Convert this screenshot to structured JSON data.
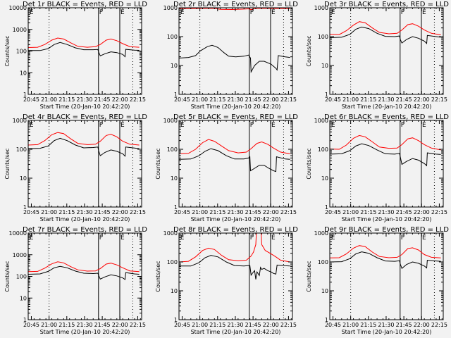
{
  "colors": {
    "background": "#f2f2f2",
    "events": "#000000",
    "lld": "#ff0000",
    "axes": "#000000"
  },
  "chart_data": {
    "type": "line",
    "layout": "3x3 grid",
    "x_ticks": [
      "20:45",
      "21:00",
      "21:15",
      "21:30",
      "21:45",
      "22:00",
      "22:15"
    ],
    "x_range_minutes_from_start": [
      0,
      96
    ],
    "x_tick_minutes": [
      2.67,
      17.67,
      32.67,
      47.67,
      62.67,
      77.67,
      92.67
    ],
    "xlabel": "Start Time (20-Jan-10 20:42:20)",
    "ylabel": "Counts/sec",
    "yscale": "log",
    "legend": "BLACK = Events, RED = LLD",
    "markers": {
      "dotted_lines_minutes": [
        17.67,
        88.5
      ],
      "solid_lines_minutes": [
        59.5,
        77.5
      ],
      "labels": [
        {
          "text": "E",
          "minute": 0.5
        },
        {
          "text": "F",
          "minute": 59.5
        },
        {
          "text": "E",
          "minute": 77.5
        }
      ]
    },
    "panels": [
      {
        "title": "Det 1r BLACK = Events, RED = LLD",
        "ylim": [
          1,
          10000
        ],
        "y_ticks": [
          "1",
          "10",
          "100",
          "1000",
          "10000"
        ],
        "show_ylabel": true,
        "series": [
          {
            "name": "Events",
            "color": "#000000",
            "x": [
              0,
              10,
              17,
              22,
              27,
              33,
              40,
              47,
              55,
              59,
              59.6,
              61,
              65,
              70,
              75,
              80,
              82,
              82.5,
              90,
              94
            ],
            "y": [
              105,
              105,
              130,
              200,
              250,
              200,
              140,
              115,
              115,
              118,
              90,
              60,
              75,
              92,
              85,
              70,
              55,
              120,
              110,
              108
            ]
          },
          {
            "name": "LLD",
            "color": "#ff0000",
            "x": [
              0,
              8,
              14,
              20,
              25,
              30,
              36,
              42,
              50,
              57,
              61,
              66,
              70,
              75,
              80,
              86,
              94
            ],
            "y": [
              145,
              150,
              200,
              320,
              400,
              360,
              240,
              165,
              150,
              160,
              200,
              320,
              360,
              300,
              220,
              160,
              150
            ]
          }
        ]
      },
      {
        "title": "Det 2r BLACK = Events, RED = LLD",
        "ylim": [
          1,
          1000
        ],
        "y_ticks": [
          "1",
          "10",
          "100",
          "1000"
        ],
        "show_ylabel": false,
        "series": [
          {
            "name": "Events",
            "color": "#000000",
            "x": [
              0,
              8,
              14,
              18,
              24,
              28,
              33,
              38,
              42,
              48,
              55,
              59,
              60.5,
              61,
              64,
              68,
              72,
              76,
              78,
              82,
              83,
              84,
              90,
              94
            ],
            "y": [
              18,
              19,
              22,
              32,
              45,
              50,
              42,
              28,
              21,
              20,
              21,
              23,
              18,
              6,
              10,
              14,
              14,
              12,
              11,
              8,
              7,
              22,
              20,
              19
            ]
          },
          {
            "name": "LLD",
            "color": "#ff0000",
            "x": [
              0,
              10,
              20,
              30,
              35,
              45,
              55,
              59.5,
              60.5,
              65,
              75,
              85,
              94
            ],
            "y": [
              930,
              940,
              950,
              950,
              880,
              870,
              900,
              920,
              860,
              950,
              950,
              940,
              930
            ]
          }
        ]
      },
      {
        "title": "Det 3r BLACK = Events, RED = LLD",
        "ylim": [
          1,
          1000
        ],
        "y_ticks": [
          "1",
          "10",
          "100",
          "1000"
        ],
        "show_ylabel": true,
        "series": [
          {
            "name": "Events",
            "color": "#000000",
            "x": [
              0,
              10,
              17,
              22,
              27,
              33,
              40,
              47,
              55,
              59,
              59.6,
              61,
              65,
              70,
              75,
              80,
              82,
              82.5,
              90,
              94
            ],
            "y": [
              92,
              95,
              120,
              180,
              215,
              190,
              130,
              102,
              100,
              105,
              80,
              60,
              80,
              100,
              88,
              70,
              58,
              110,
              100,
              95
            ]
          },
          {
            "name": "LLD",
            "color": "#ff0000",
            "x": [
              0,
              8,
              14,
              20,
              25,
              30,
              36,
              42,
              50,
              57,
              61,
              66,
              70,
              75,
              80,
              86,
              94
            ],
            "y": [
              120,
              118,
              160,
              250,
              330,
              300,
              200,
              140,
              125,
              130,
              170,
              260,
              280,
              230,
              170,
              130,
              115
            ]
          }
        ]
      },
      {
        "title": "Det 4r BLACK = Events, RED = LLD",
        "ylim": [
          1,
          1000
        ],
        "y_ticks": [
          "1",
          "10",
          "100",
          "1000"
        ],
        "show_ylabel": true,
        "series": [
          {
            "name": "Events",
            "color": "#000000",
            "x": [
              0,
              10,
              17,
              22,
              27,
              33,
              40,
              47,
              55,
              59,
              59.6,
              61,
              65,
              70,
              75,
              80,
              82,
              82.5,
              90,
              94
            ],
            "y": [
              105,
              108,
              130,
              200,
              240,
              200,
              140,
              112,
              115,
              120,
              90,
              60,
              78,
              95,
              85,
              70,
              58,
              120,
              110,
              105
            ]
          },
          {
            "name": "LLD",
            "color": "#ff0000",
            "x": [
              0,
              8,
              14,
              20,
              25,
              30,
              36,
              42,
              50,
              57,
              61,
              66,
              70,
              75,
              80,
              86,
              94
            ],
            "y": [
              140,
              145,
              200,
              320,
              380,
              350,
              230,
              160,
              145,
              150,
              190,
              300,
              330,
              270,
              190,
              150,
              140
            ]
          }
        ]
      },
      {
        "title": "Det 5r BLACK = Events, RED = LLD",
        "ylim": [
          1,
          1000
        ],
        "y_ticks": [
          "1",
          "10",
          "100",
          "1000"
        ],
        "show_ylabel": true,
        "series": [
          {
            "name": "Events",
            "color": "#000000",
            "x": [
              0,
              10,
              17,
              22,
              27,
              33,
              40,
              47,
              55,
              59,
              60,
              60.5,
              64,
              68,
              72,
              76,
              80,
              82,
              82.5,
              90,
              94
            ],
            "y": [
              45,
              46,
              60,
              85,
              105,
              90,
              60,
              46,
              46,
              50,
              55,
              18,
              22,
              28,
              28,
              22,
              18,
              17,
              55,
              46,
              45
            ]
          },
          {
            "name": "LLD",
            "color": "#ff0000",
            "x": [
              0,
              8,
              14,
              20,
              25,
              30,
              36,
              42,
              50,
              57,
              61,
              66,
              70,
              75,
              80,
              86,
              94
            ],
            "y": [
              70,
              72,
              100,
              170,
              220,
              190,
              130,
              90,
              75,
              80,
              105,
              160,
              180,
              150,
              110,
              80,
              70
            ]
          }
        ]
      },
      {
        "title": "Det 6r BLACK = Events, RED = LLD",
        "ylim": [
          1,
          1000
        ],
        "y_ticks": [
          "1",
          "10",
          "100",
          "1000"
        ],
        "show_ylabel": true,
        "series": [
          {
            "name": "Events",
            "color": "#000000",
            "x": [
              0,
              10,
              17,
              22,
              27,
              33,
              40,
              47,
              55,
              59,
              59.6,
              61,
              65,
              70,
              75,
              80,
              82,
              82.5,
              90,
              94
            ],
            "y": [
              68,
              70,
              90,
              130,
              155,
              135,
              95,
              70,
              68,
              72,
              55,
              30,
              38,
              48,
              42,
              32,
              27,
              75,
              68,
              66
            ]
          },
          {
            "name": "LLD",
            "color": "#ff0000",
            "x": [
              0,
              8,
              14,
              20,
              25,
              30,
              36,
              42,
              50,
              57,
              61,
              66,
              70,
              75,
              80,
              86,
              94
            ],
            "y": [
              102,
              100,
              140,
              240,
              300,
              270,
              180,
              120,
              108,
              110,
              145,
              230,
              250,
              200,
              145,
              110,
              95
            ]
          }
        ]
      },
      {
        "title": "Det 7r BLACK = Events, RED = LLD",
        "ylim": [
          1,
          10000
        ],
        "y_ticks": [
          "1",
          "10",
          "100",
          "1000",
          "10000"
        ],
        "show_ylabel": true,
        "series": [
          {
            "name": "Events",
            "color": "#000000",
            "x": [
              0,
              10,
              17,
              22,
              27,
              33,
              40,
              47,
              55,
              59,
              59.6,
              61,
              65,
              70,
              75,
              80,
              82,
              82.5,
              90,
              94
            ],
            "y": [
              125,
              130,
              170,
              250,
              290,
              250,
              175,
              140,
              135,
              140,
              110,
              75,
              95,
              118,
              105,
              85,
              72,
              150,
              130,
              125
            ]
          },
          {
            "name": "LLD",
            "color": "#ff0000",
            "x": [
              0,
              8,
              14,
              20,
              25,
              30,
              36,
              42,
              50,
              57,
              61,
              66,
              70,
              75,
              80,
              86,
              94
            ],
            "y": [
              165,
              170,
              240,
              380,
              470,
              420,
              280,
              200,
              175,
              180,
              230,
              370,
              410,
              340,
              250,
              180,
              165
            ]
          }
        ]
      },
      {
        "title": "Det 8r BLACK = Events, RED = LLD",
        "ylim": [
          1,
          1000
        ],
        "y_ticks": [
          "1",
          "10",
          "100",
          "1000"
        ],
        "show_ylabel": true,
        "series": [
          {
            "name": "Events",
            "color": "#000000",
            "x": [
              0,
              10,
              17,
              22,
              27,
              33,
              40,
              47,
              55,
              59,
              60,
              61,
              62,
              64,
              65,
              66,
              68,
              69,
              70,
              72,
              75,
              78,
              80,
              82,
              83,
              90,
              94
            ],
            "y": [
              72,
              72,
              95,
              140,
              170,
              150,
              100,
              75,
              72,
              75,
              75,
              35,
              40,
              50,
              25,
              45,
              34,
              65,
              55,
              60,
              50,
              45,
              40,
              38,
              78,
              74,
              72
            ]
          },
          {
            "name": "LLD",
            "color": "#ff0000",
            "x": [
              0,
              8,
              14,
              20,
              25,
              30,
              36,
              42,
              50,
              57,
              61,
              63,
              65,
              65.5,
              69.5,
              70,
              73,
              78,
              82,
              86,
              94
            ],
            "y": [
              100,
              105,
              150,
              250,
              300,
              270,
              170,
              120,
              110,
              115,
              160,
              220,
              400,
              1000,
              1000,
              400,
              250,
              190,
              150,
              115,
              100
            ]
          }
        ]
      },
      {
        "title": "Det 9r BLACK = Events, RED = LLD",
        "ylim": [
          1,
          1000
        ],
        "y_ticks": [
          "1",
          "10",
          "100",
          "1000"
        ],
        "show_ylabel": true,
        "series": [
          {
            "name": "Events",
            "color": "#000000",
            "x": [
              0,
              10,
              17,
              22,
              27,
              33,
              40,
              47,
              55,
              59,
              59.6,
              61,
              65,
              70,
              75,
              80,
              82,
              82.5,
              90,
              94
            ],
            "y": [
              100,
              102,
              130,
              190,
              225,
              200,
              140,
              108,
              105,
              110,
              85,
              60,
              82,
              100,
              90,
              72,
              62,
              115,
              108,
              105
            ]
          },
          {
            "name": "LLD",
            "color": "#ff0000",
            "x": [
              0,
              8,
              14,
              20,
              25,
              30,
              36,
              42,
              50,
              57,
              61,
              66,
              70,
              75,
              80,
              86,
              94
            ],
            "y": [
              138,
              140,
              190,
              300,
              370,
              340,
              220,
              155,
              140,
              145,
              180,
              290,
              310,
              260,
              180,
              145,
              138
            ]
          }
        ]
      }
    ]
  }
}
